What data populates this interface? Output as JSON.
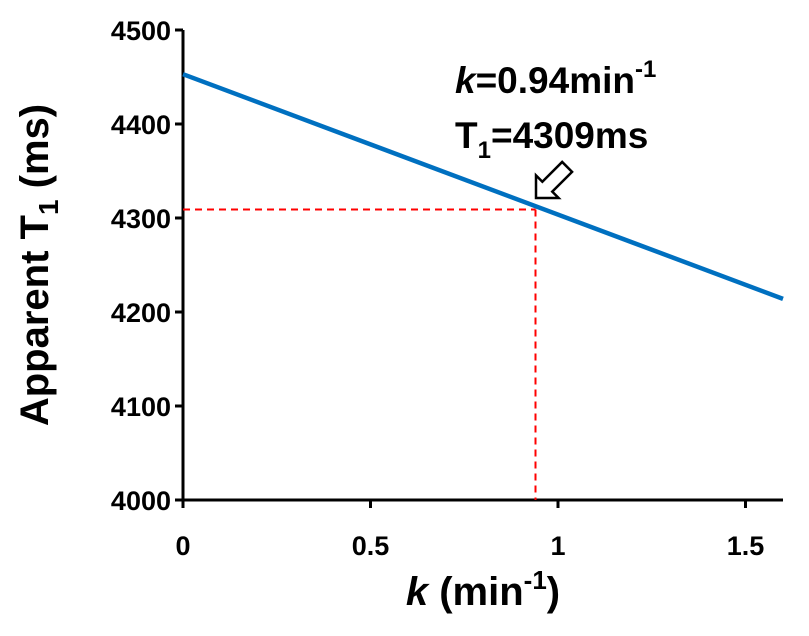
{
  "chart_data": {
    "type": "line",
    "x_label": [
      "k",
      " (min",
      "-1",
      ")"
    ],
    "y_label": [
      "Apparent T",
      "1",
      " (ms)"
    ],
    "x": [
      0,
      1.6
    ],
    "series": [
      {
        "color": "#0070c0",
        "values": [
          4453,
          4214
        ]
      }
    ],
    "xlim": [
      0,
      1.6
    ],
    "xticks": [
      0,
      0.5,
      1,
      1.5
    ],
    "ylim": [
      4000,
      4500
    ],
    "yticks": [
      4000,
      4100,
      4200,
      4300,
      4400,
      4500
    ],
    "marker": {
      "x": 0.94,
      "y": 4309,
      "color": "#ff0000"
    },
    "annotation": {
      "line1": [
        "k",
        "=0.94min",
        "-1"
      ],
      "line2": [
        "T",
        "1",
        "=4309ms"
      ]
    }
  }
}
